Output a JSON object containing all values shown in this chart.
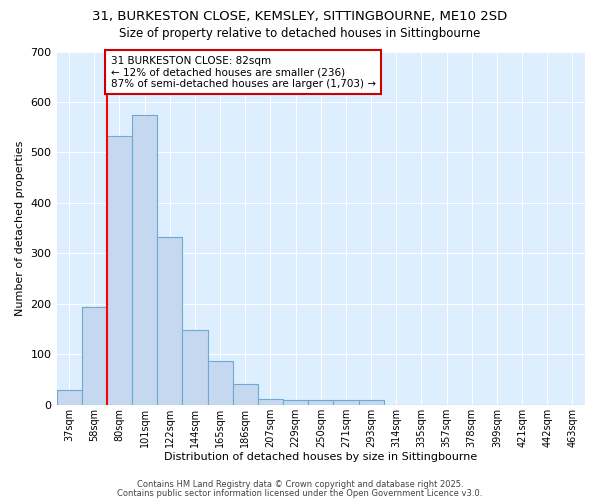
{
  "title1": "31, BURKESTON CLOSE, KEMSLEY, SITTINGBOURNE, ME10 2SD",
  "title2": "Size of property relative to detached houses in Sittingbourne",
  "xlabel": "Distribution of detached houses by size in Sittingbourne",
  "ylabel": "Number of detached properties",
  "bins": [
    "37sqm",
    "58sqm",
    "80sqm",
    "101sqm",
    "122sqm",
    "144sqm",
    "165sqm",
    "186sqm",
    "207sqm",
    "229sqm",
    "250sqm",
    "271sqm",
    "293sqm",
    "314sqm",
    "335sqm",
    "357sqm",
    "378sqm",
    "399sqm",
    "421sqm",
    "442sqm",
    "463sqm"
  ],
  "values": [
    30,
    193,
    533,
    575,
    333,
    148,
    87,
    42,
    12,
    10,
    10,
    10,
    10,
    0,
    0,
    0,
    0,
    0,
    0,
    0,
    0
  ],
  "bar_color": "#c5d8f0",
  "bar_edge_color": "#6aaad4",
  "red_line_bin_index": 2,
  "annotation_line1": "31 BURKESTON CLOSE: 82sqm",
  "annotation_line2": "← 12% of detached houses are smaller (236)",
  "annotation_line3": "87% of semi-detached houses are larger (1,703) →",
  "annotation_box_color": "#ffffff",
  "annotation_box_edge": "#cc0000",
  "ylim": [
    0,
    700
  ],
  "yticks": [
    0,
    100,
    200,
    300,
    400,
    500,
    600,
    700
  ],
  "plot_bg_color": "#ddeeff",
  "fig_bg_color": "#ffffff",
  "grid_color": "#ffffff",
  "footer1": "Contains HM Land Registry data © Crown copyright and database right 2025.",
  "footer2": "Contains public sector information licensed under the Open Government Licence v3.0."
}
